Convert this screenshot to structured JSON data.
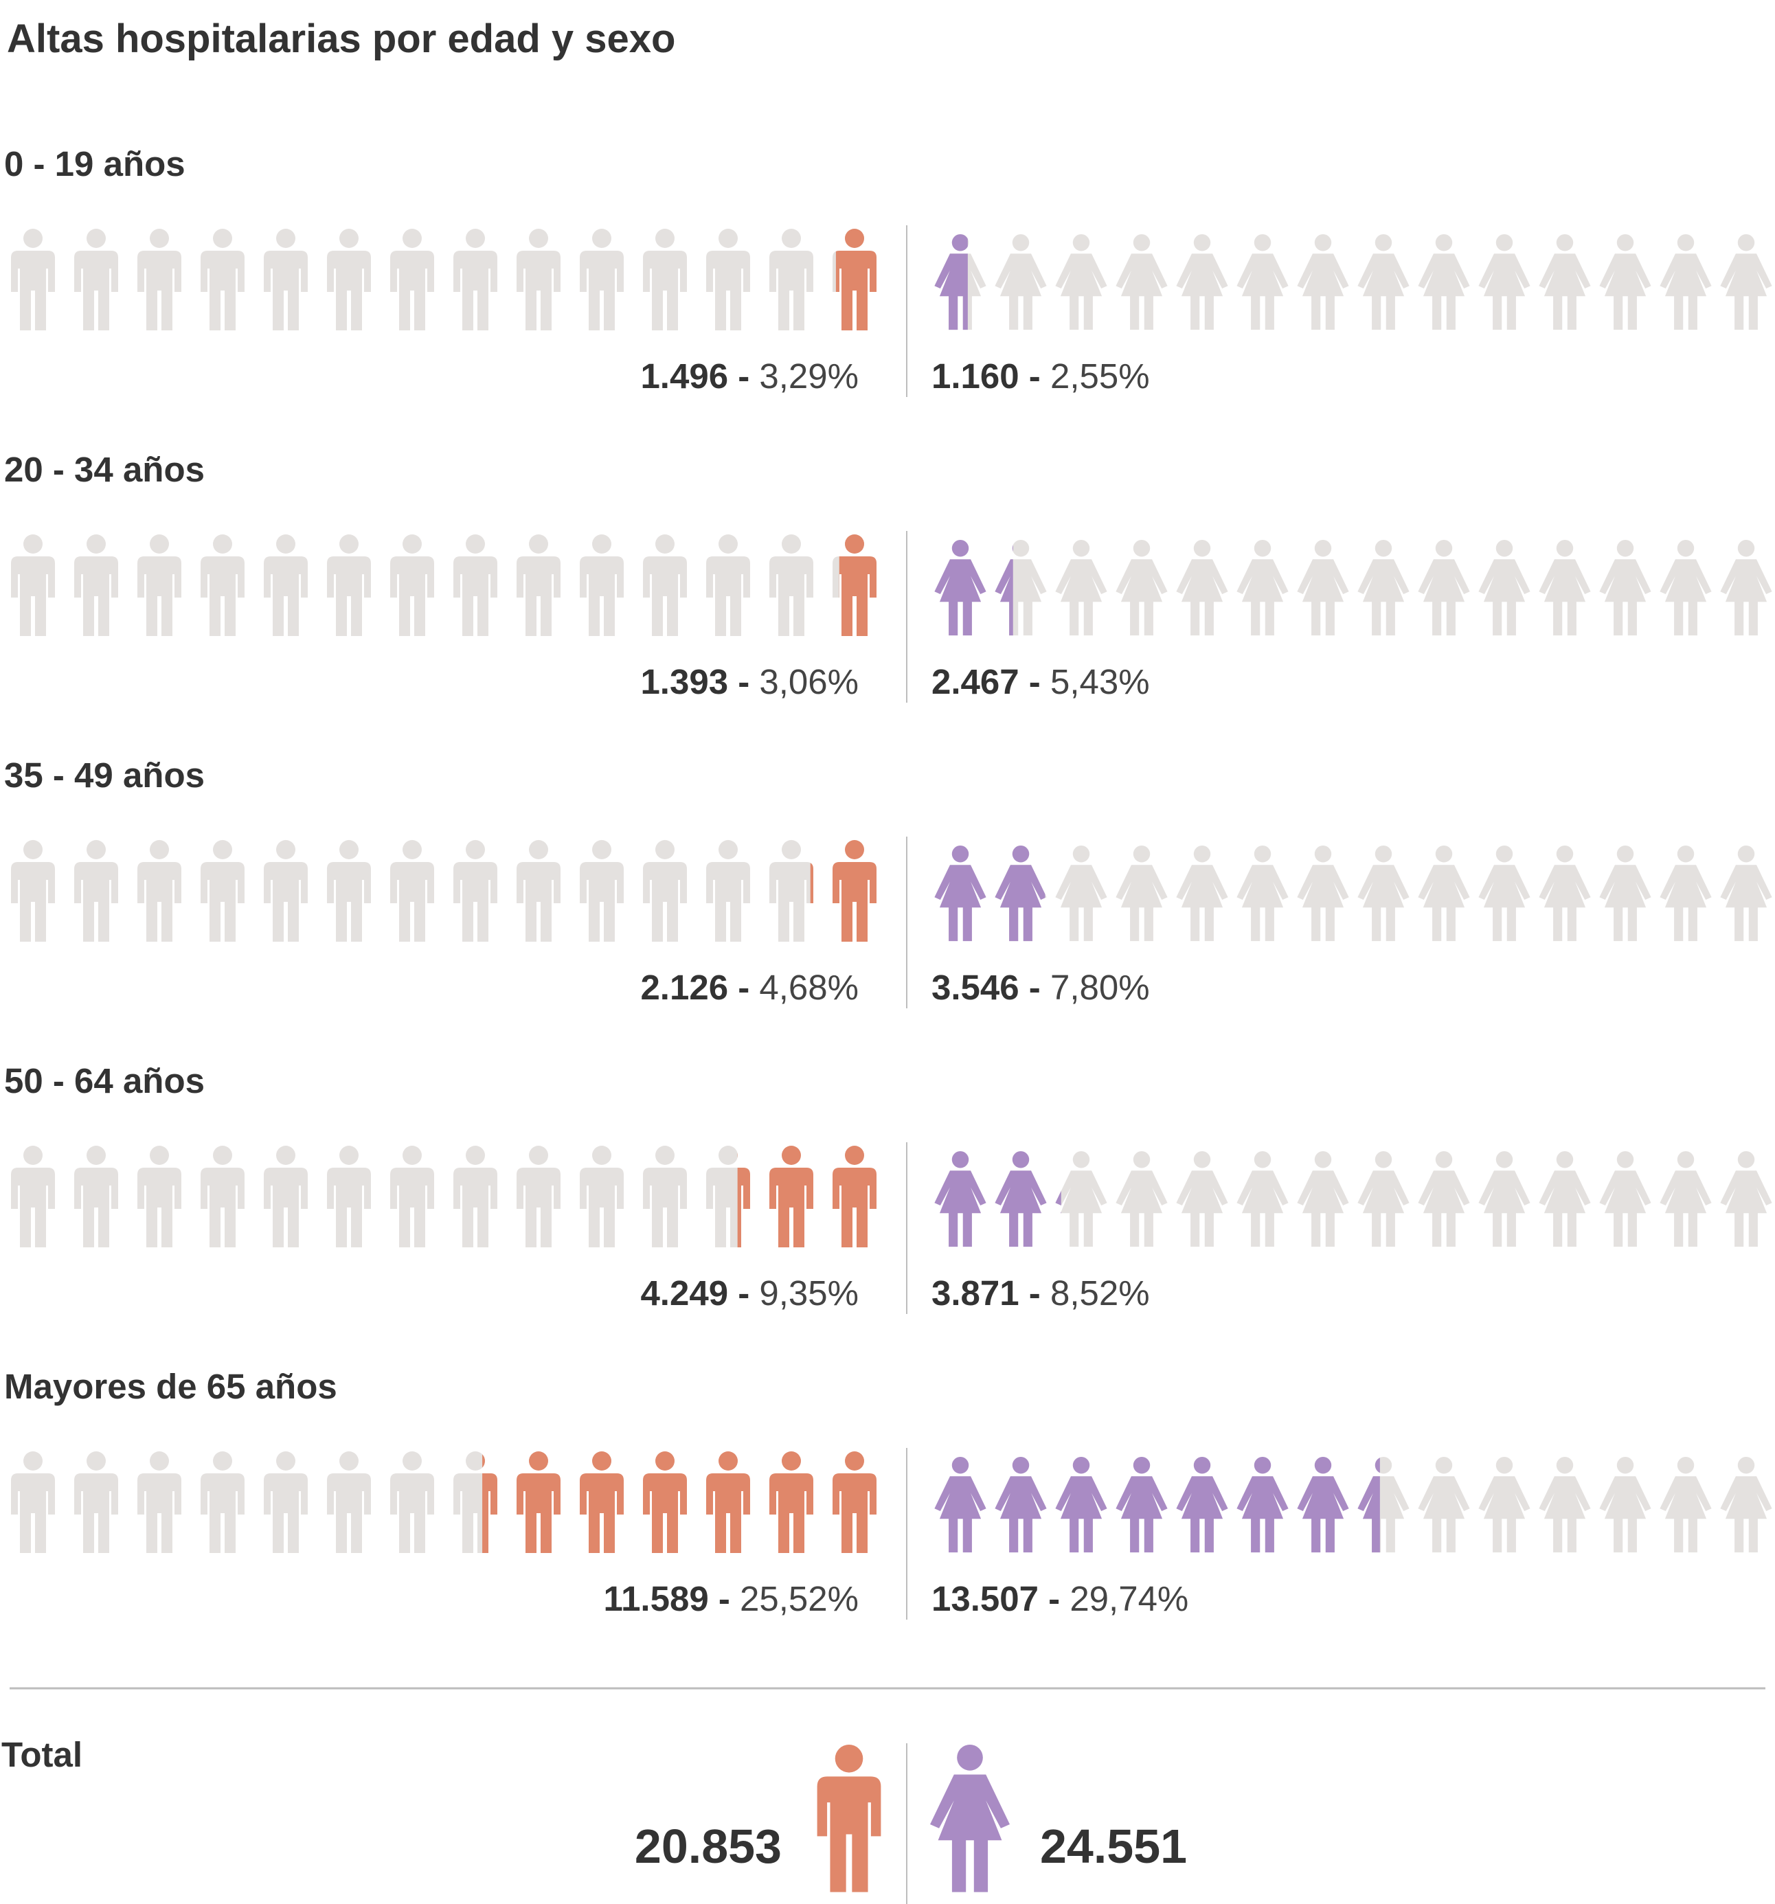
{
  "colors": {
    "male": "#e0876a",
    "female": "#a98bc4",
    "empty": "#e4e1df",
    "divider": "#bdbdbd",
    "text": "#333333"
  },
  "icons": {
    "male": "man-icon",
    "female": "woman-icon"
  },
  "chart_data": {
    "type": "pictogram",
    "title": "Altas hospitalarias por edad y sexo",
    "icon_unit_percent": 4.0,
    "icons_per_side": 14,
    "series": [
      {
        "name": "Hombres",
        "color": "#e0876a"
      },
      {
        "name": "Mujeres",
        "color": "#a98bc4"
      }
    ],
    "groups": [
      {
        "label": "0 - 19 años",
        "male": {
          "count": "1.496",
          "sep": " - ",
          "pct": "3,29%",
          "value": 3.29
        },
        "female": {
          "count": "1.160",
          "sep": " - ",
          "pct": "2,55%",
          "value": 2.55
        }
      },
      {
        "label": "20 - 34 años",
        "male": {
          "count": "1.393",
          "sep": " - ",
          "pct": "3,06%",
          "value": 3.06
        },
        "female": {
          "count": "2.467",
          "sep": " - ",
          "pct": "5,43%",
          "value": 5.43
        }
      },
      {
        "label": "35 - 49 años",
        "male": {
          "count": "2.126",
          "sep": " - ",
          "pct": "4,68%",
          "value": 4.68
        },
        "female": {
          "count": "3.546",
          "sep": " - ",
          "pct": "7,80%",
          "value": 7.8
        }
      },
      {
        "label": "50 - 64 años",
        "male": {
          "count": "4.249",
          "sep": " - ",
          "pct": "9,35%",
          "value": 9.35
        },
        "female": {
          "count": "3.871",
          "sep": " - ",
          "pct": "8,52%",
          "value": 8.52
        }
      },
      {
        "label": "Mayores de 65 años",
        "male": {
          "count": "11.589",
          "sep": " - ",
          "pct": "25,52%",
          "value": 25.52
        },
        "female": {
          "count": "13.507",
          "sep": " - ",
          "pct": "29,74%",
          "value": 29.74
        }
      }
    ],
    "total": {
      "label": "Total",
      "male": "20.853",
      "female": "24.551"
    }
  }
}
